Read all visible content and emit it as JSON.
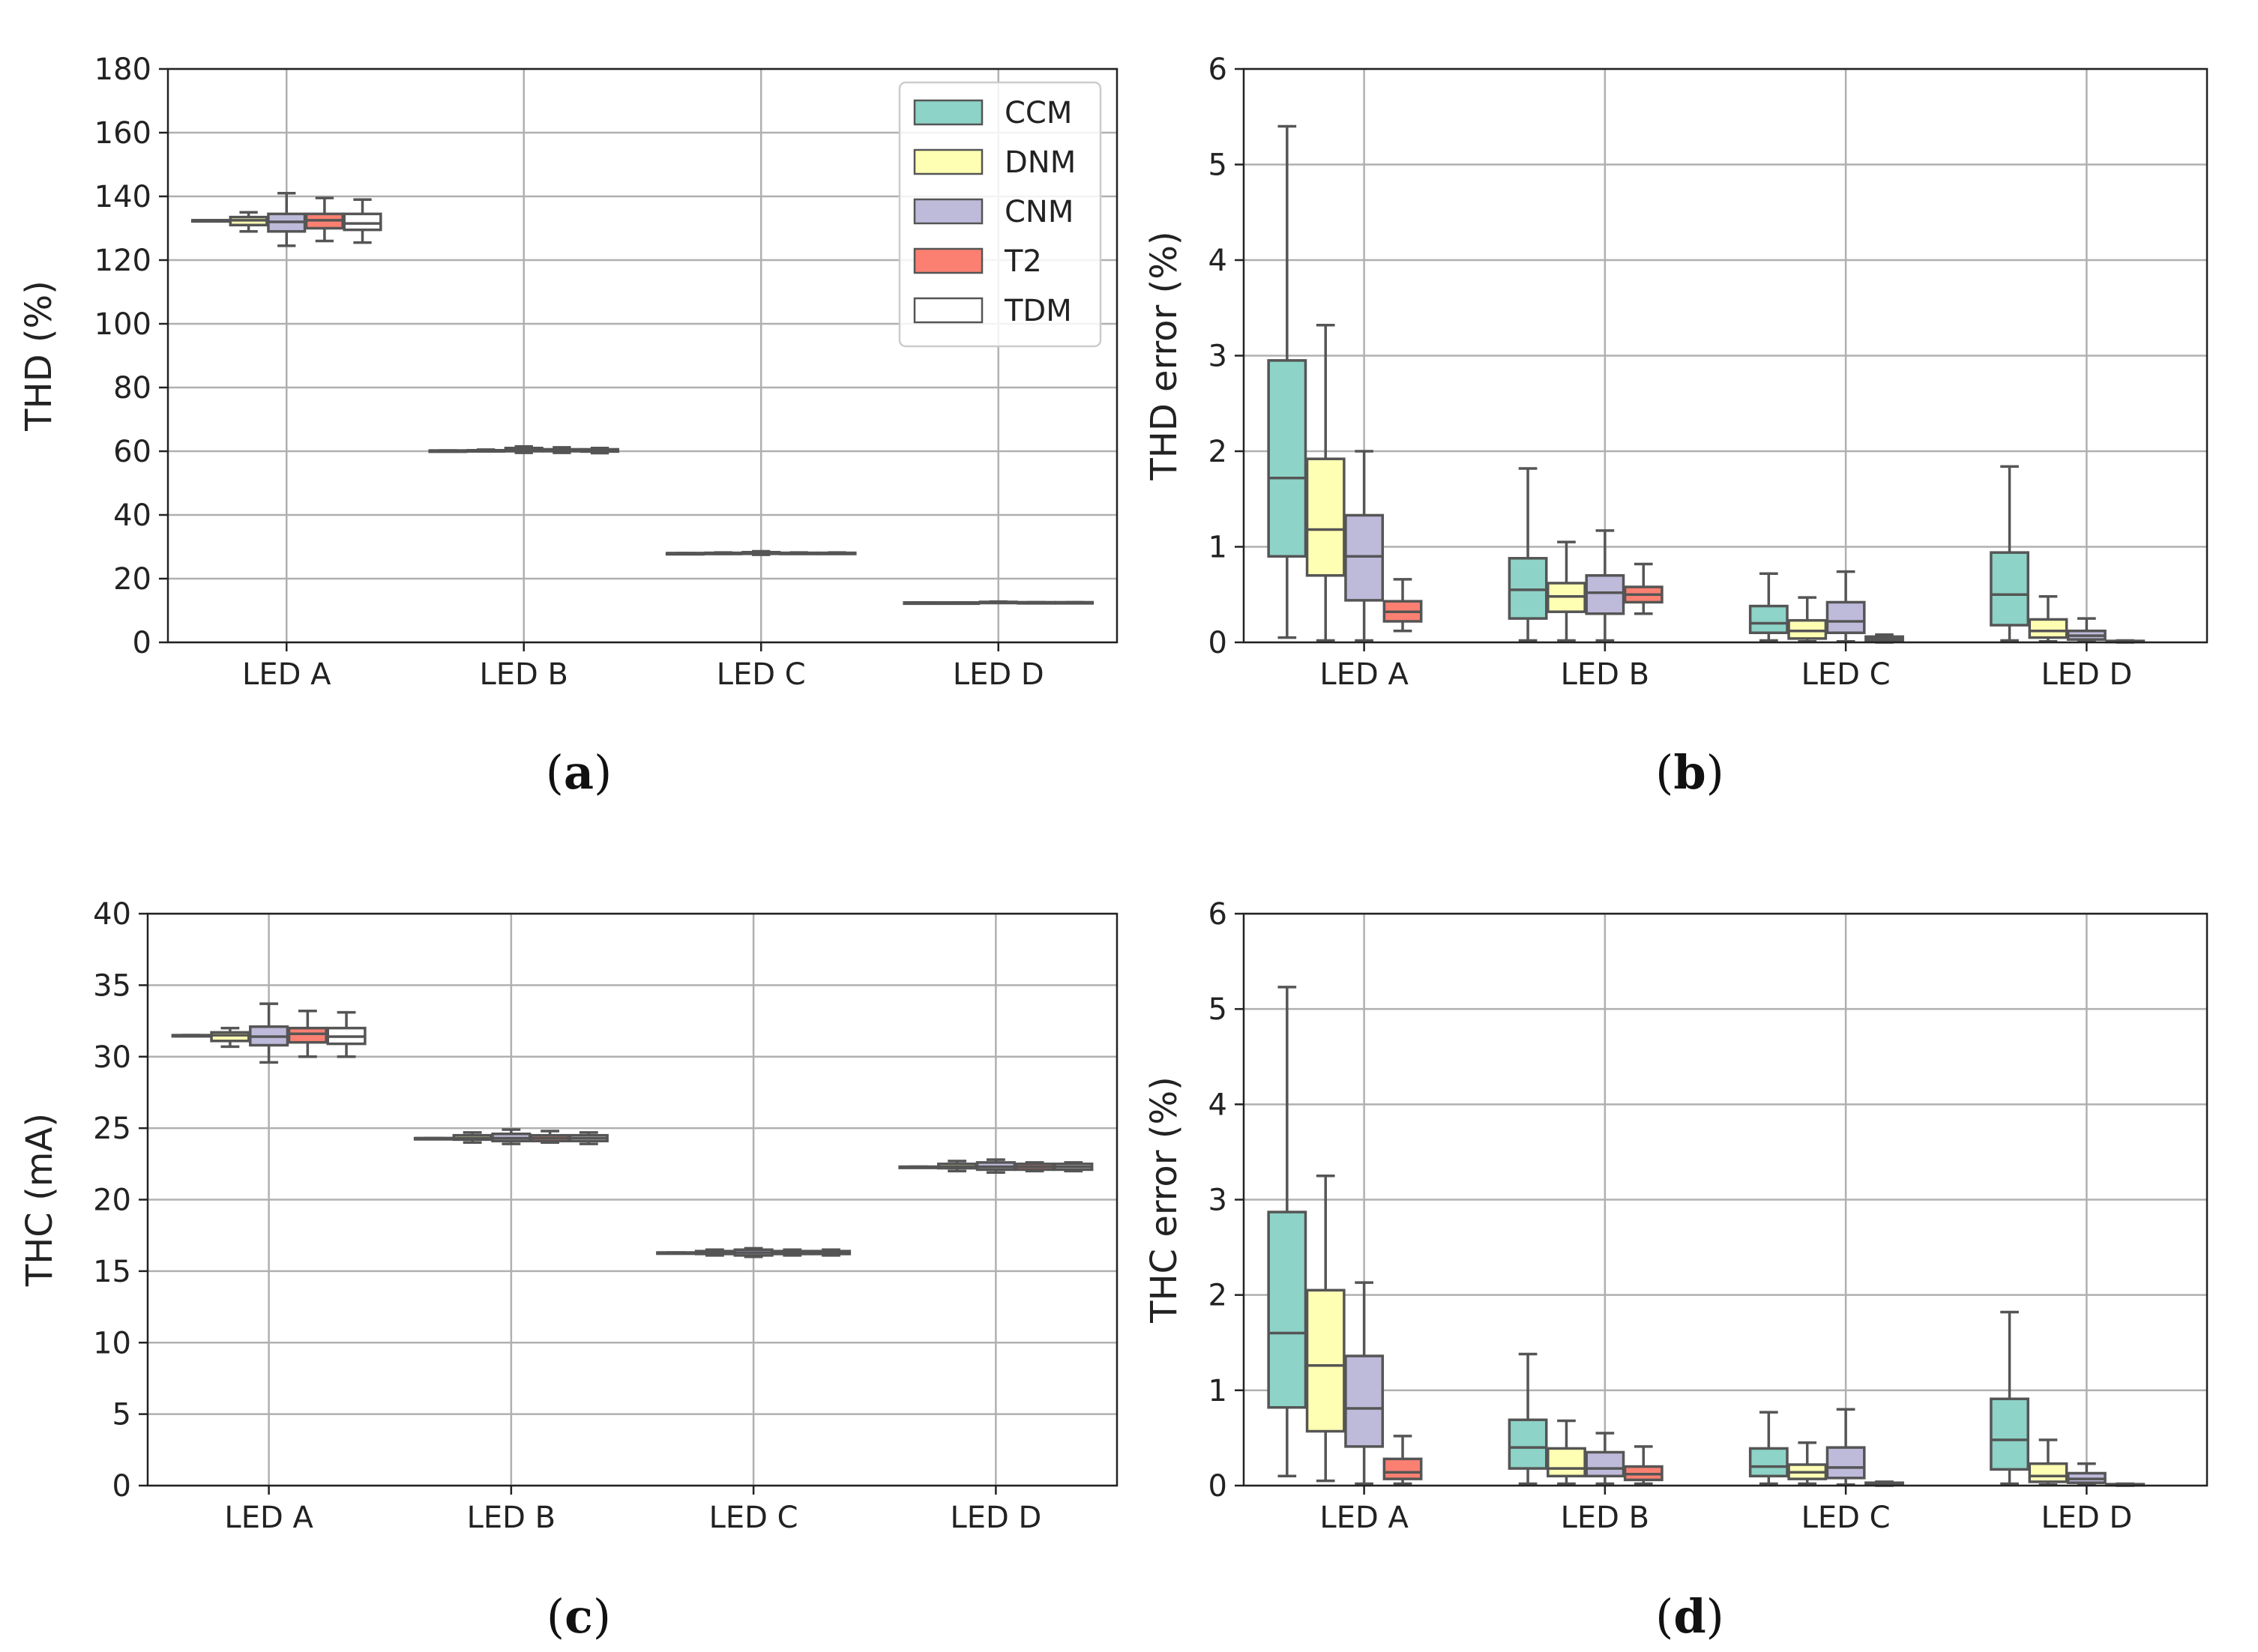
{
  "figure": {
    "panel_labels": [
      {
        "open": "(",
        "letter": "a",
        "close": ")"
      },
      {
        "open": "(",
        "letter": "b",
        "close": ")"
      },
      {
        "open": "(",
        "letter": "c",
        "close": ")"
      },
      {
        "open": "(",
        "letter": "d",
        "close": ")"
      }
    ]
  },
  "legend": {
    "entries": [
      {
        "label": "CCM",
        "color": "#8dd3c7"
      },
      {
        "label": "DNM",
        "color": "#ffffb3"
      },
      {
        "label": "CNM",
        "color": "#bebada"
      },
      {
        "label": "T2",
        "color": "#fb8072"
      },
      {
        "label": "TDM",
        "color": "#ffffff"
      }
    ]
  },
  "chart_data": [
    {
      "type": "box",
      "panel": "a",
      "title": "",
      "xlabel": "",
      "ylabel": "THD (%)",
      "categories": [
        "LED A",
        "LED B",
        "LED C",
        "LED D"
      ],
      "ylim": [
        0,
        180
      ],
      "yticks": [
        0,
        20,
        40,
        60,
        80,
        100,
        120,
        140,
        160,
        180
      ],
      "grid": true,
      "legend_position": "top-right",
      "series": [
        {
          "name": "CCM",
          "color": "#8dd3c7",
          "boxes": [
            {
              "min": 132.5,
              "q1": 132.5,
              "median": 132.5,
              "q3": 132.5,
              "max": 132.5
            },
            {
              "min": 60.2,
              "q1": 60.2,
              "median": 60.2,
              "q3": 60.2,
              "max": 60.2
            },
            {
              "min": 28.0,
              "q1": 28.0,
              "median": 28.0,
              "q3": 28.0,
              "max": 28.0
            },
            {
              "min": 12.5,
              "q1": 12.5,
              "median": 12.5,
              "q3": 12.5,
              "max": 12.5
            }
          ]
        },
        {
          "name": "DNM",
          "color": "#ffffb3",
          "boxes": [
            {
              "min": 129,
              "q1": 131,
              "median": 132.5,
              "q3": 133.5,
              "max": 135
            },
            {
              "min": 60.0,
              "q1": 60.1,
              "median": 60.2,
              "q3": 60.3,
              "max": 60.5
            },
            {
              "min": 27.8,
              "q1": 27.9,
              "median": 28.0,
              "q3": 28.1,
              "max": 28.2
            },
            {
              "min": 12.5,
              "q1": 12.5,
              "median": 12.5,
              "q3": 12.5,
              "max": 12.5
            }
          ]
        },
        {
          "name": "CNM",
          "color": "#bebada",
          "boxes": [
            {
              "min": 124.5,
              "q1": 129,
              "median": 132,
              "q3": 134.5,
              "max": 141
            },
            {
              "min": 59.5,
              "q1": 60.0,
              "median": 60.5,
              "q3": 61.0,
              "max": 61.5
            },
            {
              "min": 27.5,
              "q1": 27.8,
              "median": 28.0,
              "q3": 28.3,
              "max": 28.6
            },
            {
              "min": 12.4,
              "q1": 12.5,
              "median": 12.6,
              "q3": 12.7,
              "max": 12.8
            }
          ]
        },
        {
          "name": "T2",
          "color": "#fb8072",
          "boxes": [
            {
              "min": 126,
              "q1": 130,
              "median": 132.5,
              "q3": 134.5,
              "max": 139.5
            },
            {
              "min": 59.5,
              "q1": 60.0,
              "median": 60.2,
              "q3": 60.6,
              "max": 61.2
            },
            {
              "min": 27.9,
              "q1": 28.0,
              "median": 28.0,
              "q3": 28.1,
              "max": 28.2
            },
            {
              "min": 12.5,
              "q1": 12.5,
              "median": 12.5,
              "q3": 12.6,
              "max": 12.6
            }
          ]
        },
        {
          "name": "TDM",
          "color": "#ffffff",
          "boxes": [
            {
              "min": 125.5,
              "q1": 129.5,
              "median": 131.5,
              "q3": 134.5,
              "max": 139
            },
            {
              "min": 59.4,
              "q1": 59.9,
              "median": 60.2,
              "q3": 60.6,
              "max": 61.0
            },
            {
              "min": 27.9,
              "q1": 28.0,
              "median": 28.0,
              "q3": 28.1,
              "max": 28.2
            },
            {
              "min": 12.5,
              "q1": 12.5,
              "median": 12.5,
              "q3": 12.6,
              "max": 12.6
            }
          ]
        }
      ]
    },
    {
      "type": "box",
      "panel": "b",
      "title": "",
      "xlabel": "",
      "ylabel": "THD error (%)",
      "categories": [
        "LED A",
        "LED B",
        "LED C",
        "LED D"
      ],
      "ylim": [
        0,
        6
      ],
      "yticks": [
        0,
        1,
        2,
        3,
        4,
        5,
        6
      ],
      "grid": true,
      "series": [
        {
          "name": "CCM",
          "color": "#8dd3c7",
          "boxes": [
            {
              "min": 0.05,
              "q1": 0.9,
              "median": 1.72,
              "q3": 2.95,
              "max": 5.4
            },
            {
              "min": 0.02,
              "q1": 0.25,
              "median": 0.55,
              "q3": 0.88,
              "max": 1.82
            },
            {
              "min": 0.02,
              "q1": 0.1,
              "median": 0.2,
              "q3": 0.38,
              "max": 0.72
            },
            {
              "min": 0.02,
              "q1": 0.18,
              "median": 0.5,
              "q3": 0.94,
              "max": 1.84
            }
          ]
        },
        {
          "name": "DNM",
          "color": "#ffffb3",
          "boxes": [
            {
              "min": 0.02,
              "q1": 0.7,
              "median": 1.18,
              "q3": 1.92,
              "max": 3.32
            },
            {
              "min": 0.02,
              "q1": 0.32,
              "median": 0.48,
              "q3": 0.62,
              "max": 1.05
            },
            {
              "min": 0.01,
              "q1": 0.04,
              "median": 0.12,
              "q3": 0.23,
              "max": 0.47
            },
            {
              "min": 0.01,
              "q1": 0.05,
              "median": 0.12,
              "q3": 0.24,
              "max": 0.48
            }
          ]
        },
        {
          "name": "CNM",
          "color": "#bebada",
          "boxes": [
            {
              "min": 0.02,
              "q1": 0.44,
              "median": 0.9,
              "q3": 1.33,
              "max": 2.0
            },
            {
              "min": 0.02,
              "q1": 0.3,
              "median": 0.52,
              "q3": 0.7,
              "max": 1.17
            },
            {
              "min": 0.01,
              "q1": 0.1,
              "median": 0.22,
              "q3": 0.42,
              "max": 0.74
            },
            {
              "min": 0.01,
              "q1": 0.03,
              "median": 0.07,
              "q3": 0.12,
              "max": 0.25
            }
          ]
        },
        {
          "name": "T2",
          "color": "#fb8072",
          "boxes": [
            {
              "min": 0.12,
              "q1": 0.22,
              "median": 0.32,
              "q3": 0.43,
              "max": 0.66
            },
            {
              "min": 0.3,
              "q1": 0.42,
              "median": 0.5,
              "q3": 0.58,
              "max": 0.82
            },
            {
              "min": 0.0,
              "q1": 0.02,
              "median": 0.04,
              "q3": 0.06,
              "max": 0.08
            },
            {
              "min": 0.0,
              "q1": 0.005,
              "median": 0.01,
              "q3": 0.015,
              "max": 0.02
            }
          ]
        },
        {
          "name": "TDM",
          "color": "#ffffff",
          "boxes": [
            null,
            null,
            null,
            null
          ]
        }
      ]
    },
    {
      "type": "box",
      "panel": "c",
      "title": "",
      "xlabel": "",
      "ylabel": "THC (mA)",
      "categories": [
        "LED A",
        "LED B",
        "LED C",
        "LED D"
      ],
      "ylim": [
        0,
        40
      ],
      "yticks": [
        0,
        5,
        10,
        15,
        20,
        25,
        30,
        35,
        40
      ],
      "grid": true,
      "series": [
        {
          "name": "CCM",
          "color": "#8dd3c7",
          "boxes": [
            {
              "min": 31.5,
              "q1": 31.5,
              "median": 31.5,
              "q3": 31.5,
              "max": 31.5
            },
            {
              "min": 24.3,
              "q1": 24.3,
              "median": 24.3,
              "q3": 24.3,
              "max": 24.3
            },
            {
              "min": 16.3,
              "q1": 16.3,
              "median": 16.3,
              "q3": 16.3,
              "max": 16.3
            },
            {
              "min": 22.3,
              "q1": 22.3,
              "median": 22.3,
              "q3": 22.3,
              "max": 22.3
            }
          ]
        },
        {
          "name": "DNM",
          "color": "#ffffb3",
          "boxes": [
            {
              "min": 30.7,
              "q1": 31.1,
              "median": 31.5,
              "q3": 31.7,
              "max": 32.0
            },
            {
              "min": 24.0,
              "q1": 24.2,
              "median": 24.3,
              "q3": 24.5,
              "max": 24.7
            },
            {
              "min": 16.1,
              "q1": 16.2,
              "median": 16.3,
              "q3": 16.4,
              "max": 16.5
            },
            {
              "min": 22.0,
              "q1": 22.2,
              "median": 22.3,
              "q3": 22.5,
              "max": 22.7
            }
          ]
        },
        {
          "name": "CNM",
          "color": "#bebada",
          "boxes": [
            {
              "min": 29.6,
              "q1": 30.8,
              "median": 31.4,
              "q3": 32.1,
              "max": 33.7
            },
            {
              "min": 23.9,
              "q1": 24.1,
              "median": 24.3,
              "q3": 24.6,
              "max": 24.9
            },
            {
              "min": 16.0,
              "q1": 16.1,
              "median": 16.3,
              "q3": 16.5,
              "max": 16.6
            },
            {
              "min": 21.9,
              "q1": 22.1,
              "median": 22.3,
              "q3": 22.6,
              "max": 22.8
            }
          ]
        },
        {
          "name": "T2",
          "color": "#fb8072",
          "boxes": [
            {
              "min": 30.0,
              "q1": 31.0,
              "median": 31.6,
              "q3": 32.0,
              "max": 33.2
            },
            {
              "min": 24.0,
              "q1": 24.1,
              "median": 24.3,
              "q3": 24.5,
              "max": 24.8
            },
            {
              "min": 16.1,
              "q1": 16.2,
              "median": 16.3,
              "q3": 16.4,
              "max": 16.5
            },
            {
              "min": 22.0,
              "q1": 22.1,
              "median": 22.3,
              "q3": 22.5,
              "max": 22.6
            }
          ]
        },
        {
          "name": "TDM",
          "color": "#ffffff",
          "boxes": [
            {
              "min": 30.0,
              "q1": 30.9,
              "median": 31.4,
              "q3": 32.0,
              "max": 33.1
            },
            {
              "min": 23.9,
              "q1": 24.1,
              "median": 24.3,
              "q3": 24.5,
              "max": 24.7
            },
            {
              "min": 16.1,
              "q1": 16.2,
              "median": 16.3,
              "q3": 16.4,
              "max": 16.5
            },
            {
              "min": 22.0,
              "q1": 22.1,
              "median": 22.3,
              "q3": 22.5,
              "max": 22.6
            }
          ]
        }
      ]
    },
    {
      "type": "box",
      "panel": "d",
      "title": "",
      "xlabel": "",
      "ylabel": "THC error (%)",
      "categories": [
        "LED A",
        "LED B",
        "LED C",
        "LED D"
      ],
      "ylim": [
        0,
        6
      ],
      "yticks": [
        0,
        1,
        2,
        3,
        4,
        5,
        6
      ],
      "grid": true,
      "series": [
        {
          "name": "CCM",
          "color": "#8dd3c7",
          "boxes": [
            {
              "min": 0.1,
              "q1": 0.82,
              "median": 1.6,
              "q3": 2.87,
              "max": 5.23
            },
            {
              "min": 0.02,
              "q1": 0.18,
              "median": 0.4,
              "q3": 0.69,
              "max": 1.38
            },
            {
              "min": 0.02,
              "q1": 0.1,
              "median": 0.2,
              "q3": 0.39,
              "max": 0.77
            },
            {
              "min": 0.02,
              "q1": 0.17,
              "median": 0.48,
              "q3": 0.91,
              "max": 1.82
            }
          ]
        },
        {
          "name": "DNM",
          "color": "#ffffb3",
          "boxes": [
            {
              "min": 0.05,
              "q1": 0.57,
              "median": 1.26,
              "q3": 2.05,
              "max": 3.25
            },
            {
              "min": 0.02,
              "q1": 0.1,
              "median": 0.18,
              "q3": 0.39,
              "max": 0.68
            },
            {
              "min": 0.02,
              "q1": 0.07,
              "median": 0.14,
              "q3": 0.22,
              "max": 0.45
            },
            {
              "min": 0.01,
              "q1": 0.04,
              "median": 0.1,
              "q3": 0.23,
              "max": 0.48
            }
          ]
        },
        {
          "name": "CNM",
          "color": "#bebada",
          "boxes": [
            {
              "min": 0.02,
              "q1": 0.41,
              "median": 0.81,
              "q3": 1.36,
              "max": 2.13
            },
            {
              "min": 0.02,
              "q1": 0.1,
              "median": 0.18,
              "q3": 0.35,
              "max": 0.55
            },
            {
              "min": 0.01,
              "q1": 0.08,
              "median": 0.19,
              "q3": 0.4,
              "max": 0.8
            },
            {
              "min": 0.01,
              "q1": 0.03,
              "median": 0.07,
              "q3": 0.13,
              "max": 0.23
            }
          ]
        },
        {
          "name": "T2",
          "color": "#fb8072",
          "boxes": [
            {
              "min": 0.02,
              "q1": 0.07,
              "median": 0.14,
              "q3": 0.28,
              "max": 0.52
            },
            {
              "min": 0.02,
              "q1": 0.06,
              "median": 0.12,
              "q3": 0.2,
              "max": 0.41
            },
            {
              "min": 0.0,
              "q1": 0.01,
              "median": 0.02,
              "q3": 0.03,
              "max": 0.04
            },
            {
              "min": 0.0,
              "q1": 0.005,
              "median": 0.01,
              "q3": 0.015,
              "max": 0.02
            }
          ]
        },
        {
          "name": "TDM",
          "color": "#ffffff",
          "boxes": [
            null,
            null,
            null,
            null
          ]
        }
      ]
    }
  ]
}
